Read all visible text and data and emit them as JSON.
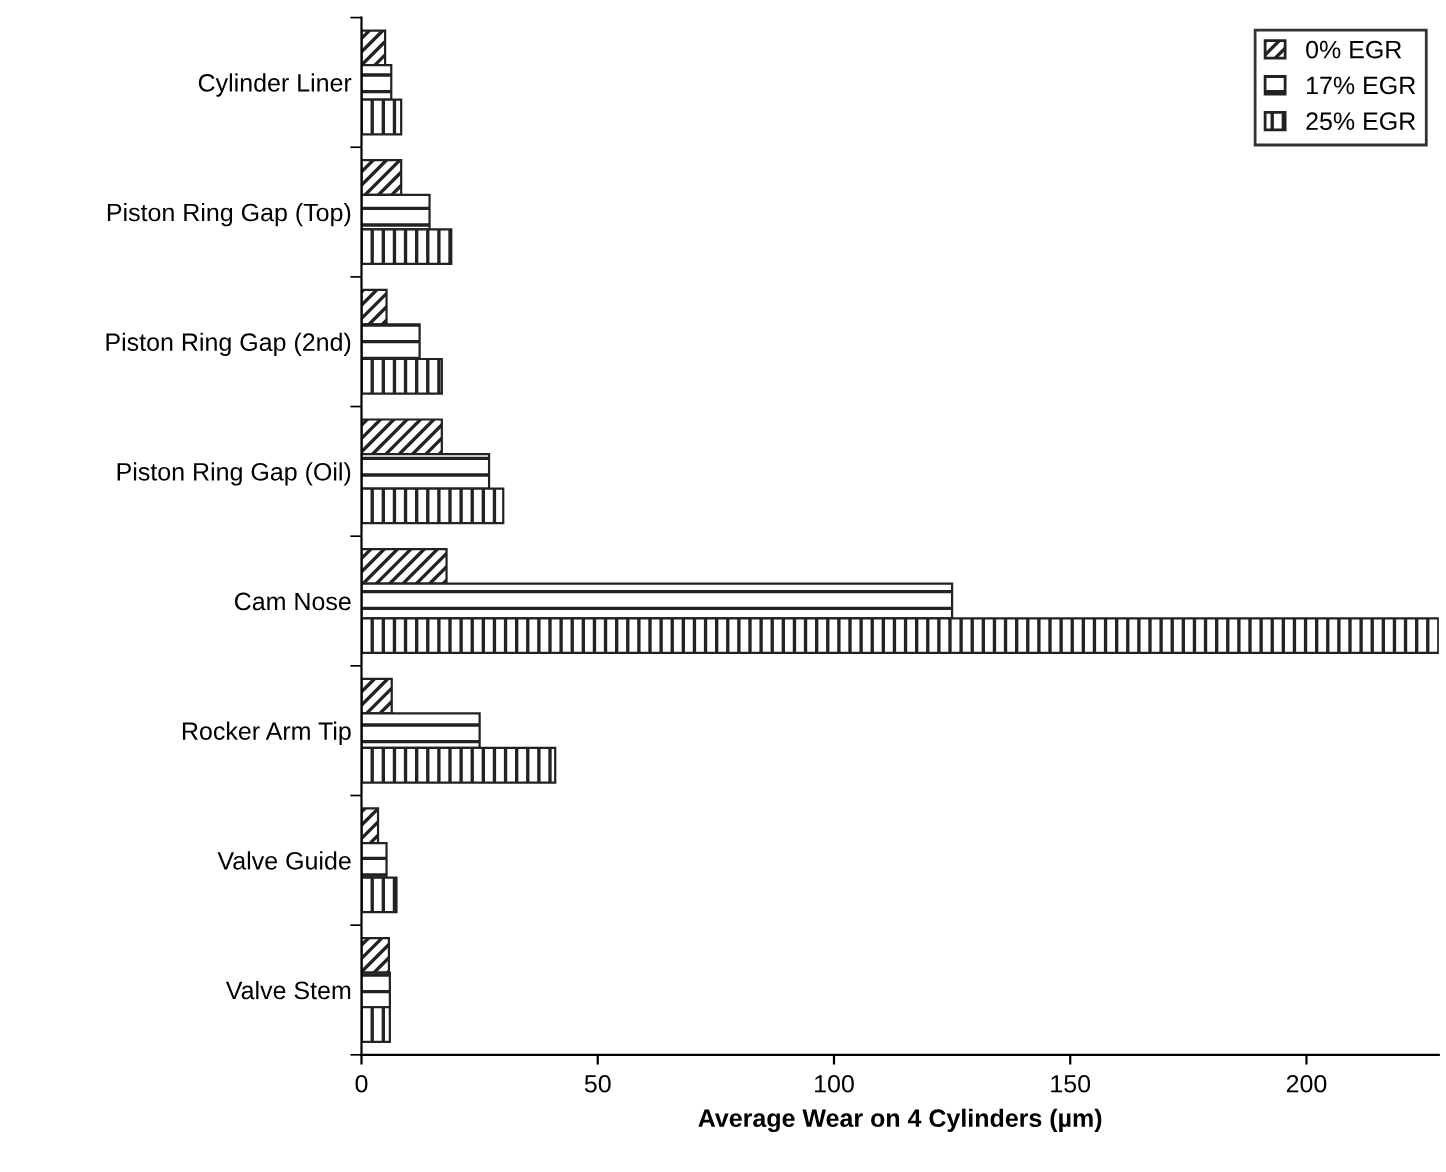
{
  "chart_data": {
    "type": "bar",
    "orientation": "horizontal",
    "xlabel": "Average Wear on 4 Cylinders (µm)",
    "categories": [
      "Cylinder Liner",
      "Piston Ring Gap (Top)",
      "Piston Ring Gap (2nd)",
      "Piston Ring Gap (Oil)",
      "Cam Nose",
      "Rocker Arm Tip",
      "Valve Guide",
      "Valve Stem"
    ],
    "series": [
      {
        "name": "0% EGR",
        "color": "#222222",
        "values": [
          5,
          8.4,
          5.3,
          17,
          18,
          6.4,
          3.5,
          5.8
        ]
      },
      {
        "name": "17% EGR",
        "color": "#222222",
        "values": [
          6.3,
          14.4,
          12.3,
          27,
          125,
          25,
          5.3,
          6
        ]
      },
      {
        "name": "25% EGR",
        "color": "#222222",
        "values": [
          8.4,
          19,
          17,
          30,
          228,
          41,
          7.4,
          6
        ]
      }
    ],
    "xlim": [
      0,
      228
    ],
    "xticks": [
      0,
      50,
      100,
      150,
      200
    ],
    "grid": false,
    "legend": "top right"
  }
}
